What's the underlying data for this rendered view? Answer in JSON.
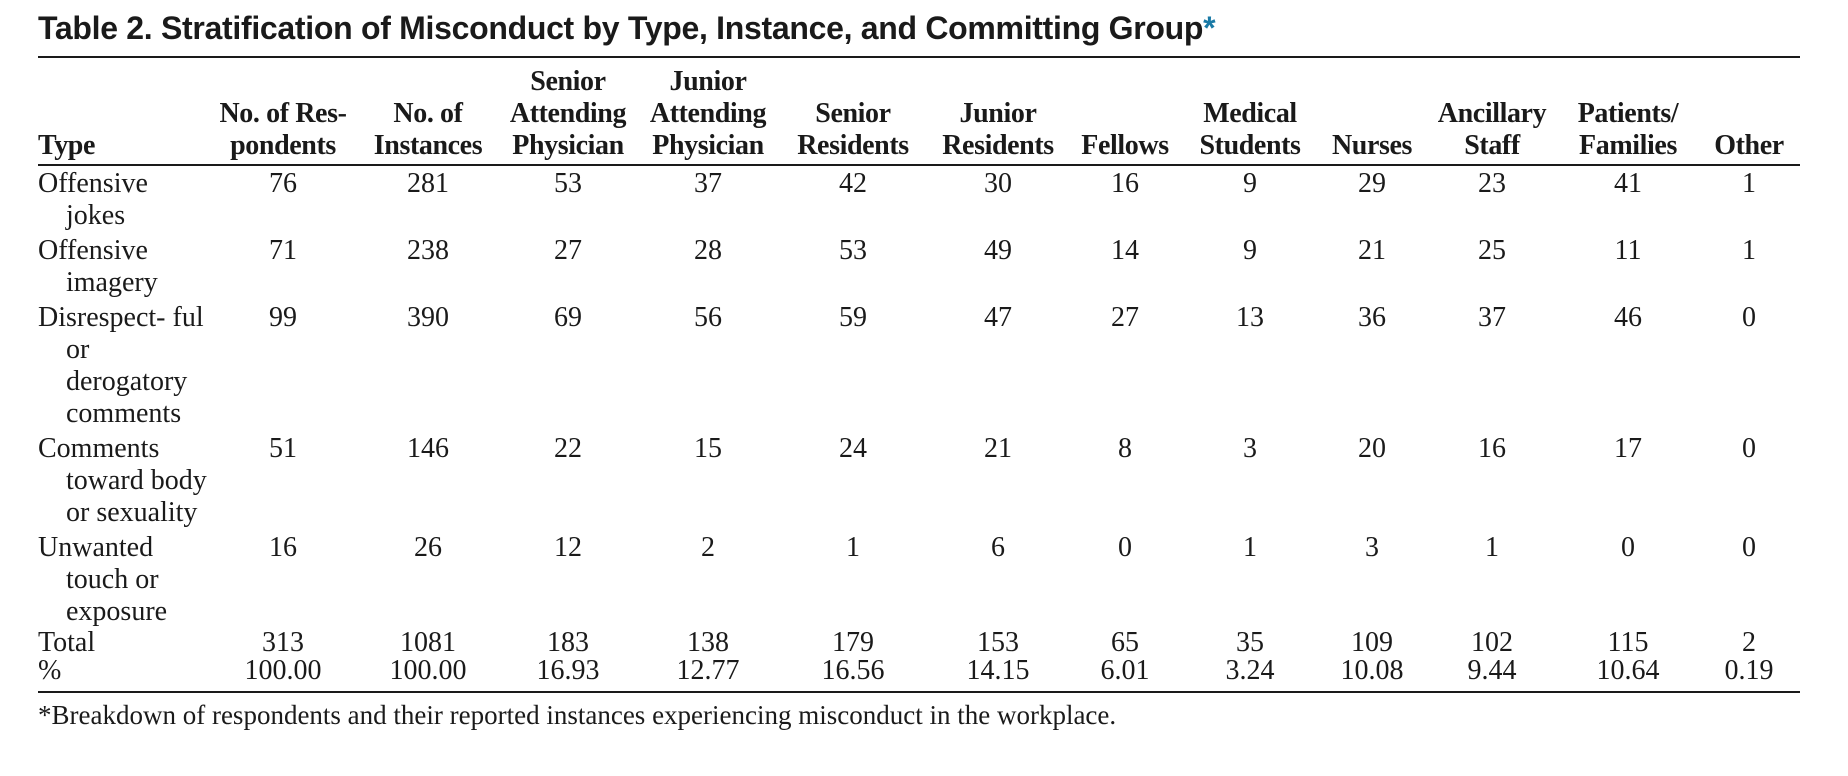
{
  "table": {
    "title_text": "Table 2.  Stratification of Misconduct by Type, Instance, and Committing Group",
    "title_marker": "*",
    "headers": [
      "Type",
      "No. of Res- pondents",
      "No. of Instances",
      "Senior Attending Physician",
      "Junior Attending Physician",
      "Senior Residents",
      "Junior Residents",
      "Fellows",
      "Medical Students",
      "Nurses",
      "Ancillary Staff",
      "Patients/ Families",
      "Other"
    ],
    "rows": [
      {
        "type": "Offensive jokes",
        "values": [
          "76",
          "281",
          "53",
          "37",
          "42",
          "30",
          "16",
          "9",
          "29",
          "23",
          "41",
          "1"
        ]
      },
      {
        "type": "Offensive imagery",
        "values": [
          "71",
          "238",
          "27",
          "28",
          "53",
          "49",
          "14",
          "9",
          "21",
          "25",
          "11",
          "1"
        ]
      },
      {
        "type": "Disrespect- ful or derogatory comments",
        "values": [
          "99",
          "390",
          "69",
          "56",
          "59",
          "47",
          "27",
          "13",
          "36",
          "37",
          "46",
          "0"
        ]
      },
      {
        "type": "Comments toward body or sexuality",
        "values": [
          "51",
          "146",
          "22",
          "15",
          "24",
          "21",
          "8",
          "3",
          "20",
          "16",
          "17",
          "0"
        ]
      },
      {
        "type": "Unwanted touch or exposure",
        "values": [
          "16",
          "26",
          "12",
          "2",
          "1",
          "6",
          "0",
          "1",
          "3",
          "1",
          "0",
          "0"
        ]
      }
    ],
    "total": {
      "label": "Total",
      "values": [
        "313",
        "1081",
        "183",
        "138",
        "179",
        "153",
        "65",
        "35",
        "109",
        "102",
        "115",
        "2"
      ]
    },
    "percent": {
      "label": "%",
      "values": [
        "100.00",
        "100.00",
        "16.93",
        "12.77",
        "16.56",
        "14.15",
        "6.01",
        "3.24",
        "10.08",
        "9.44",
        "10.64",
        "0.19"
      ]
    },
    "footnote": "*Breakdown of respondents and their reported instances experiencing misconduct in the workplace."
  }
}
